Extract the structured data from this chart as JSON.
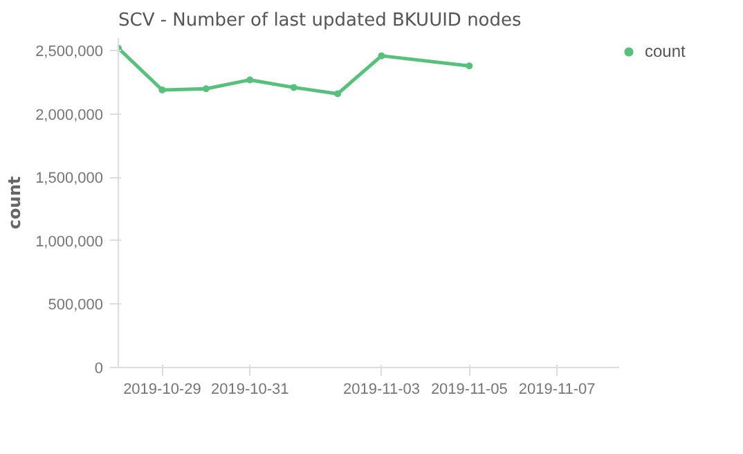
{
  "chart_data": {
    "type": "line",
    "title": "SCV - Number of last updated BKUUID nodes",
    "ylabel": "count",
    "x": [
      "2019-10-28",
      "2019-10-29",
      "2019-10-30",
      "2019-10-31",
      "2019-11-01",
      "2019-11-02",
      "2019-11-03",
      "2019-11-05"
    ],
    "series": [
      {
        "name": "count",
        "color": "#57c17b",
        "values": [
          2520000,
          2190000,
          2200000,
          2270000,
          2210000,
          2160000,
          2460000,
          2380000
        ]
      }
    ],
    "xlim": [
      "2019-10-28",
      "2019-11-08T10:00"
    ],
    "xticks": [
      "2019-10-29",
      "2019-10-31",
      "2019-11-03",
      "2019-11-05",
      "2019-11-07"
    ],
    "ylim": [
      0,
      2600000
    ],
    "yticks": [
      {
        "value": 0,
        "label": "0"
      },
      {
        "value": 500000,
        "label": "500,000"
      },
      {
        "value": 1000000,
        "label": "1,000,000"
      },
      {
        "value": 1500000,
        "label": "1,500,000"
      },
      {
        "value": 2000000,
        "label": "2,000,000"
      },
      {
        "value": 2500000,
        "label": "2,500,000"
      }
    ],
    "marker": "circle",
    "legend": "top right",
    "grid": false
  }
}
